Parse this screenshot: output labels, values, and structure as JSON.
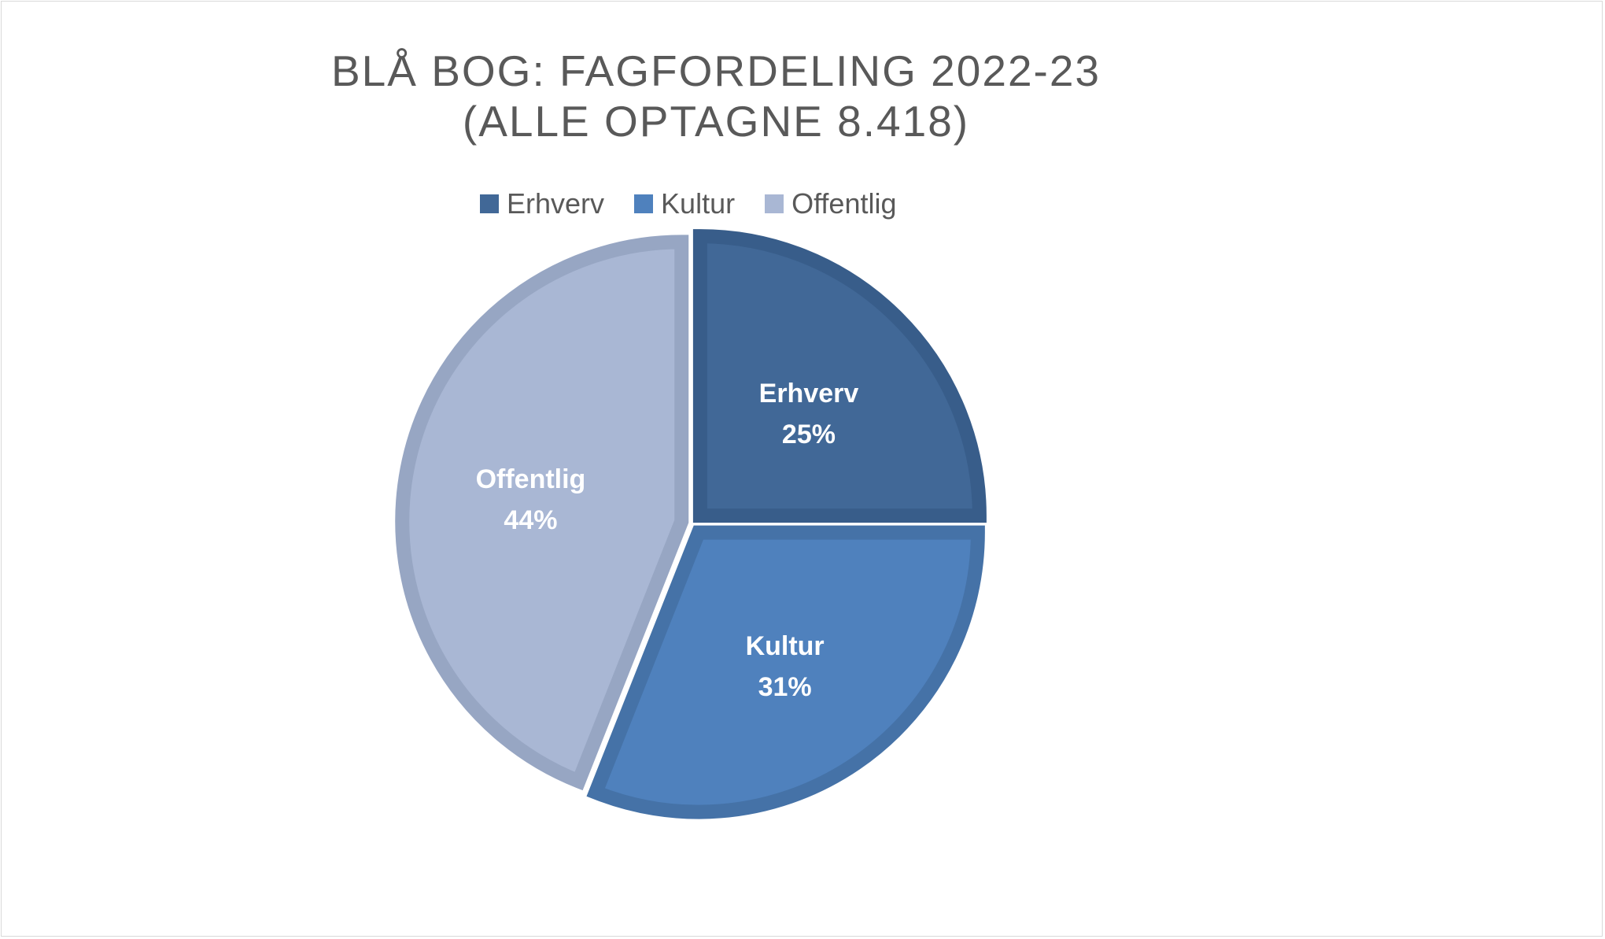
{
  "chart_data": {
    "type": "pie",
    "title": "BLÅ BOG: FAGFORDELING 2022-23",
    "subtitle": "(ALLE OPTAGNE 8.418)",
    "legend_position": "top",
    "slices": [
      {
        "name": "Erhverv",
        "value": 25,
        "label": "25%",
        "color": "#416897",
        "border": "#385d8a"
      },
      {
        "name": "Kultur",
        "value": 31,
        "label": "31%",
        "color": "#4f81bd",
        "border": "#4572a7"
      },
      {
        "name": "Offentlig",
        "value": 44,
        "label": "44%",
        "color": "#a9b7d4",
        "border": "#97a6c3"
      }
    ]
  }
}
